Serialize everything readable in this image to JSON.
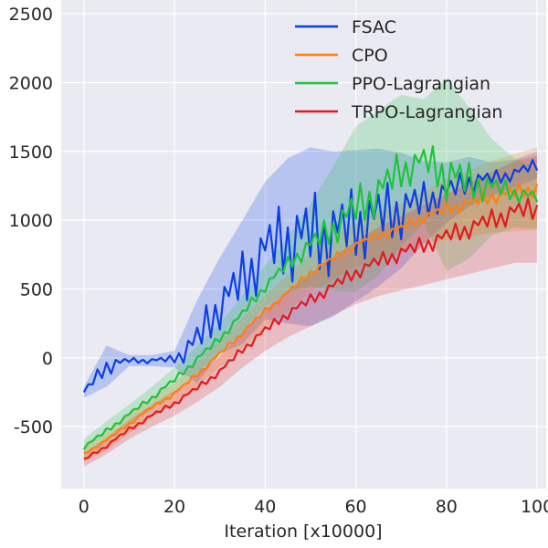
{
  "chart_data": {
    "type": "line",
    "title": "",
    "xlabel": "Iteration [x10000]",
    "ylabel": "",
    "xlim": [
      -5,
      102
    ],
    "ylim": [
      -950,
      2600
    ],
    "xticks": [
      0,
      20,
      40,
      60,
      80,
      100
    ],
    "yticks": [
      -500,
      0,
      500,
      1000,
      1500,
      2000,
      2500
    ],
    "grid": true,
    "legend_position": "top-right",
    "shaded_bands": true,
    "x": [
      0,
      5,
      10,
      15,
      20,
      25,
      30,
      35,
      40,
      45,
      50,
      55,
      60,
      65,
      70,
      75,
      80,
      85,
      90,
      95,
      100
    ],
    "series": [
      {
        "name": "FSAC",
        "color": "#0b3fe6",
        "values": [
          -250,
          -60,
          -20,
          -20,
          -10,
          120,
          380,
          550,
          780,
          850,
          880,
          900,
          960,
          1020,
          1070,
          1130,
          1200,
          1280,
          1300,
          1340,
          1400
        ],
        "band": [
          40,
          150,
          40,
          40,
          60,
          300,
          350,
          450,
          500,
          600,
          650,
          600,
          550,
          500,
          420,
          300,
          220,
          180,
          120,
          100,
          100
        ]
      },
      {
        "name": "CPO",
        "color": "#ff7f0e",
        "values": [
          -700,
          -600,
          -480,
          -360,
          -260,
          -120,
          30,
          180,
          340,
          470,
          620,
          720,
          820,
          890,
          940,
          1020,
          1080,
          1120,
          1170,
          1200,
          1230
        ],
        "band": [
          60,
          70,
          70,
          70,
          80,
          90,
          100,
          110,
          120,
          130,
          140,
          150,
          160,
          170,
          180,
          190,
          220,
          240,
          260,
          280,
          300
        ]
      },
      {
        "name": "PPO-Lagrangian",
        "color": "#1ec43a",
        "values": [
          -650,
          -530,
          -410,
          -290,
          -160,
          -10,
          140,
          320,
          520,
          680,
          820,
          940,
          1080,
          1200,
          1360,
          1430,
          1330,
          1270,
          1240,
          1200,
          1160
        ],
        "band": [
          60,
          70,
          70,
          80,
          90,
          100,
          110,
          130,
          150,
          200,
          300,
          450,
          600,
          600,
          550,
          450,
          700,
          550,
          350,
          250,
          220
        ]
      },
      {
        "name": "TRPO-Lagrangian",
        "color": "#e31a1c",
        "values": [
          -740,
          -640,
          -520,
          -420,
          -330,
          -220,
          -100,
          60,
          200,
          320,
          420,
          520,
          620,
          700,
          760,
          820,
          880,
          940,
          1000,
          1060,
          1080
        ],
        "band": [
          50,
          60,
          70,
          80,
          90,
          100,
          110,
          130,
          150,
          170,
          190,
          210,
          230,
          250,
          270,
          290,
          310,
          330,
          350,
          370,
          390
        ]
      }
    ]
  }
}
